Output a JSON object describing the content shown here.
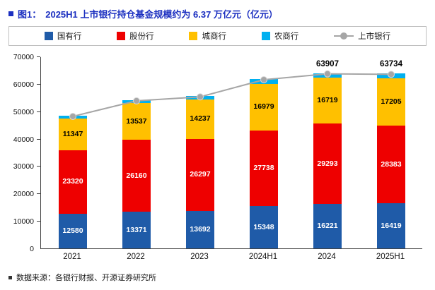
{
  "title": {
    "tag": "图1：",
    "text": "2025H1 上市银行持仓基金规模约为 6.37 万亿元（亿元）"
  },
  "source": "数据来源：各银行财报、开源证券研究所",
  "chart_data": {
    "type": "bar",
    "stacked": true,
    "title": "2025H1 上市银行持仓基金规模约为 6.37 万亿元（亿元）",
    "categories": [
      "2021",
      "2022",
      "2023",
      "2024H1",
      "2024",
      "2025H1"
    ],
    "series": [
      {
        "name": "国有行",
        "color": "#1F5BA8",
        "label_color": "#ffffff",
        "values": [
          12580,
          13371,
          13692,
          15348,
          16221,
          16419
        ]
      },
      {
        "name": "股份行",
        "color": "#EE0000",
        "label_color": "#ffffff",
        "values": [
          23320,
          26160,
          26297,
          27738,
          29293,
          28383
        ]
      },
      {
        "name": "城商行",
        "color": "#FFC000",
        "label_color": "#000000",
        "values": [
          11347,
          13537,
          14237,
          16979,
          16719,
          17205
        ]
      },
      {
        "name": "农商行",
        "color": "#00B0F0",
        "label_color": null,
        "values": [
          1150,
          1000,
          1300,
          1700,
          1674,
          1727
        ]
      }
    ],
    "line_series": {
      "name": "上市银行",
      "color": "#A6A6A6",
      "values": [
        48397,
        54068,
        55526,
        61765,
        63907,
        63734
      ],
      "point_labels": {
        "4": "63907",
        "5": "63734"
      }
    },
    "ylim": [
      0,
      70000
    ],
    "yticks": [
      0,
      10000,
      20000,
      30000,
      40000,
      50000,
      60000,
      70000
    ],
    "grid": false,
    "legend_position": "top"
  }
}
